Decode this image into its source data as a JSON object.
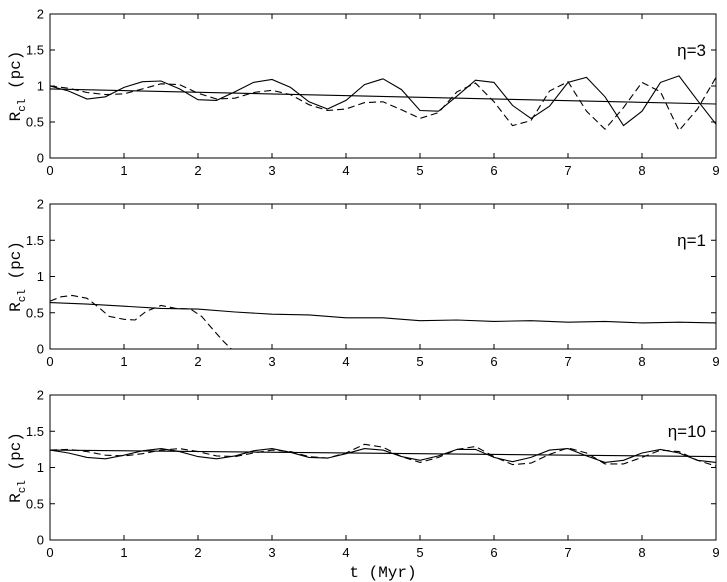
{
  "chart_data": [
    {
      "type": "line",
      "annotation": "η=3",
      "xlabel": "",
      "ylabel": "R",
      "ylabel_sub": "cl",
      "ylabel_unit": "(pc)",
      "xlim": [
        0,
        9
      ],
      "ylim": [
        0,
        2
      ],
      "xticks": [
        "0",
        "1",
        "2",
        "3",
        "4",
        "5",
        "6",
        "7",
        "8",
        "9"
      ],
      "yticks": [
        "0",
        "0.5",
        "1",
        "1.5",
        "2"
      ],
      "grid": false,
      "series": [
        {
          "style": "solid",
          "x": [
            0,
            0.25,
            0.5,
            0.75,
            1,
            1.25,
            1.5,
            1.75,
            2,
            2.25,
            2.5,
            2.75,
            3,
            3.25,
            3.5,
            3.75,
            4,
            4.25,
            4.5,
            4.75,
            5,
            5.25,
            5.5,
            5.75,
            6,
            6.25,
            6.5,
            6.75,
            7,
            7.25,
            7.5,
            7.75,
            8,
            8.25,
            8.5,
            8.75,
            9
          ],
          "y": [
            1.0,
            0.93,
            0.82,
            0.85,
            0.98,
            1.06,
            1.07,
            0.96,
            0.81,
            0.8,
            0.92,
            1.05,
            1.09,
            0.98,
            0.78,
            0.68,
            0.8,
            1.02,
            1.1,
            0.95,
            0.66,
            0.65,
            0.86,
            1.08,
            1.05,
            0.73,
            0.55,
            0.72,
            1.05,
            1.12,
            0.85,
            0.45,
            0.65,
            1.05,
            1.14,
            0.8,
            0.47
          ]
        },
        {
          "style": "dashed",
          "x": [
            0,
            0.25,
            0.5,
            0.75,
            1,
            1.25,
            1.5,
            1.75,
            2,
            2.25,
            2.5,
            2.75,
            3,
            3.25,
            3.5,
            3.75,
            4,
            4.25,
            4.5,
            4.75,
            5,
            5.25,
            5.5,
            5.75,
            6,
            6.25,
            6.5,
            6.75,
            7,
            7.25,
            7.5,
            7.75,
            8,
            8.25,
            8.5,
            8.75,
            9
          ],
          "y": [
            1.0,
            0.97,
            0.91,
            0.88,
            0.89,
            0.96,
            1.03,
            1.02,
            0.9,
            0.82,
            0.83,
            0.91,
            0.94,
            0.88,
            0.74,
            0.66,
            0.68,
            0.77,
            0.78,
            0.67,
            0.55,
            0.63,
            0.92,
            1.04,
            0.78,
            0.45,
            0.52,
            0.93,
            1.06,
            0.65,
            0.4,
            0.7,
            1.05,
            0.92,
            0.38,
            0.68,
            1.12
          ]
        },
        {
          "style": "solid",
          "x": [
            0,
            9
          ],
          "y": [
            0.96,
            0.75
          ]
        }
      ]
    },
    {
      "type": "line",
      "annotation": "η=1",
      "xlabel": "",
      "ylabel": "R",
      "ylabel_sub": "cl",
      "ylabel_unit": "(pc)",
      "xlim": [
        0,
        9
      ],
      "ylim": [
        0,
        2
      ],
      "xticks": [
        "0",
        "1",
        "2",
        "3",
        "4",
        "5",
        "6",
        "7",
        "8",
        "9"
      ],
      "yticks": [
        "0",
        "0.5",
        "1",
        "1.5",
        "2"
      ],
      "grid": false,
      "series": [
        {
          "style": "solid",
          "x": [
            0,
            0.5,
            1,
            1.5,
            2,
            2.5,
            3,
            3.5,
            4,
            4.5,
            5,
            5.5,
            6,
            6.5,
            7,
            7.5,
            8,
            8.5,
            9
          ],
          "y": [
            0.64,
            0.62,
            0.59,
            0.56,
            0.55,
            0.51,
            0.48,
            0.47,
            0.43,
            0.43,
            0.39,
            0.4,
            0.38,
            0.39,
            0.37,
            0.38,
            0.36,
            0.37,
            0.36
          ]
        },
        {
          "style": "dashed",
          "x": [
            0,
            0.15,
            0.3,
            0.5,
            0.65,
            0.8,
            1.0,
            1.15,
            1.3,
            1.5,
            1.7,
            1.9,
            2.05,
            2.2,
            2.35,
            2.45
          ],
          "y": [
            0.66,
            0.72,
            0.74,
            0.7,
            0.58,
            0.45,
            0.41,
            0.4,
            0.52,
            0.6,
            0.56,
            0.55,
            0.45,
            0.27,
            0.1,
            0.0
          ]
        }
      ]
    },
    {
      "type": "line",
      "annotation": "η=10",
      "xlabel": "t (Myr)",
      "ylabel": "R",
      "ylabel_sub": "cl",
      "ylabel_unit": "(pc)",
      "xlim": [
        0,
        9
      ],
      "ylim": [
        0,
        2
      ],
      "xticks": [
        "0",
        "1",
        "2",
        "3",
        "4",
        "5",
        "6",
        "7",
        "8",
        "9"
      ],
      "yticks": [
        "0",
        "0.5",
        "1",
        "1.5",
        "2"
      ],
      "grid": false,
      "series": [
        {
          "style": "solid",
          "x": [
            0,
            0.25,
            0.5,
            0.75,
            1,
            1.25,
            1.5,
            1.75,
            2,
            2.25,
            2.5,
            2.75,
            3,
            3.25,
            3.5,
            3.75,
            4,
            4.25,
            4.5,
            4.75,
            5,
            5.25,
            5.5,
            5.75,
            6,
            6.25,
            6.5,
            6.75,
            7,
            7.25,
            7.5,
            7.75,
            8,
            8.25,
            8.5,
            8.75,
            9
          ],
          "y": [
            1.24,
            1.2,
            1.14,
            1.12,
            1.17,
            1.23,
            1.26,
            1.22,
            1.15,
            1.12,
            1.16,
            1.23,
            1.26,
            1.21,
            1.14,
            1.13,
            1.19,
            1.26,
            1.24,
            1.15,
            1.1,
            1.16,
            1.25,
            1.25,
            1.14,
            1.08,
            1.14,
            1.24,
            1.26,
            1.16,
            1.07,
            1.1,
            1.2,
            1.25,
            1.2,
            1.1,
            1.07
          ]
        },
        {
          "style": "dashed",
          "x": [
            0,
            0.25,
            0.5,
            0.75,
            1,
            1.25,
            1.5,
            1.75,
            2,
            2.25,
            2.5,
            2.75,
            3,
            3.25,
            3.5,
            3.75,
            4,
            4.25,
            4.5,
            4.75,
            5,
            5.25,
            5.5,
            5.75,
            6,
            6.25,
            6.5,
            6.75,
            7,
            7.25,
            7.5,
            7.75,
            8,
            8.25,
            8.5,
            8.75,
            9
          ],
          "y": [
            1.24,
            1.25,
            1.22,
            1.17,
            1.16,
            1.19,
            1.24,
            1.26,
            1.22,
            1.16,
            1.15,
            1.2,
            1.24,
            1.22,
            1.15,
            1.13,
            1.2,
            1.32,
            1.28,
            1.15,
            1.07,
            1.14,
            1.25,
            1.29,
            1.15,
            1.04,
            1.06,
            1.18,
            1.27,
            1.2,
            1.05,
            1.05,
            1.14,
            1.24,
            1.22,
            1.1,
            1.02
          ]
        },
        {
          "style": "solid",
          "x": [
            0,
            9
          ],
          "y": [
            1.24,
            1.15
          ]
        }
      ]
    }
  ]
}
